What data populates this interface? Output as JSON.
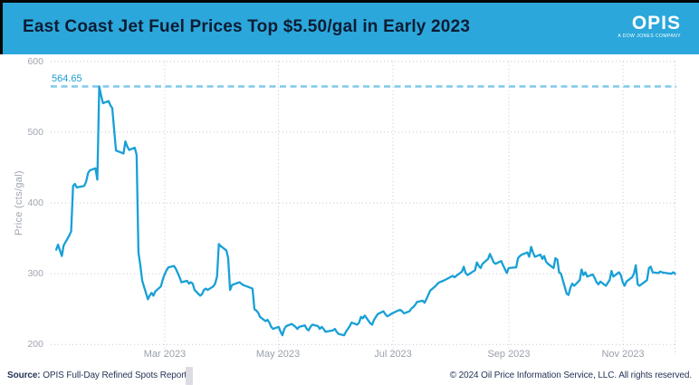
{
  "header": {
    "title": "East Coast Jet Fuel Prices Top $5.50/gal in Early 2023",
    "logo_text": "OPIS",
    "logo_tagline": "A DOW JONES COMPANY"
  },
  "footer": {
    "source_label": "Source:",
    "source_text": " OPIS Full-Day Refined Spots Report",
    "copyright": "© 2024 Oil Price Information Service, LLC. All rights reserved."
  },
  "colors": {
    "header_bg": "#2ba7db",
    "line": "#18a0d6",
    "annotation_line": "#85cbe9",
    "annotation_text": "#1b9ed6",
    "gridline": "#c8c5d0",
    "axis_text": "#9aa0ab"
  },
  "chart_data": {
    "type": "line",
    "title": "East Coast Jet Fuel Prices Top $5.50/gal in Early 2023",
    "xlabel": "",
    "ylabel": "Price (cts/gal)",
    "ylim": [
      200,
      600
    ],
    "x_range": [
      "2023-01-01",
      "2023-12-01"
    ],
    "grid": true,
    "y_tick_labels": [
      "600",
      "500",
      "400",
      "300",
      "200"
    ],
    "x_tick_labels": [
      "Mar 2023",
      "May 2023",
      "Jul 2023",
      "Sep 2023",
      "Nov 2023"
    ],
    "annotation": {
      "label": "564.65",
      "value": 564.65
    },
    "series": [
      {
        "name": "East Coast jet fuel spot price (cts/gal)",
        "points": [
          [
            "2023-01-02",
            334
          ],
          [
            "2023-01-03",
            341
          ],
          [
            "2023-01-04",
            333
          ],
          [
            "2023-01-05",
            325
          ],
          [
            "2023-01-06",
            340
          ],
          [
            "2023-01-09",
            354
          ],
          [
            "2023-01-10",
            360
          ],
          [
            "2023-01-11",
            424
          ],
          [
            "2023-01-12",
            427
          ],
          [
            "2023-01-13",
            422
          ],
          [
            "2023-01-17",
            424
          ],
          [
            "2023-01-18",
            430
          ],
          [
            "2023-01-19",
            442
          ],
          [
            "2023-01-20",
            446
          ],
          [
            "2023-01-23",
            449
          ],
          [
            "2023-01-24",
            433
          ],
          [
            "2023-01-25",
            564.65
          ],
          [
            "2023-01-26",
            552
          ],
          [
            "2023-01-27",
            541
          ],
          [
            "2023-01-30",
            544
          ],
          [
            "2023-01-31",
            538
          ],
          [
            "2023-02-01",
            534
          ],
          [
            "2023-02-02",
            503
          ],
          [
            "2023-02-03",
            474
          ],
          [
            "2023-02-06",
            471
          ],
          [
            "2023-02-07",
            470
          ],
          [
            "2023-02-08",
            487
          ],
          [
            "2023-02-09",
            480
          ],
          [
            "2023-02-10",
            475
          ],
          [
            "2023-02-13",
            478
          ],
          [
            "2023-02-14",
            468
          ],
          [
            "2023-02-15",
            330
          ],
          [
            "2023-02-16",
            312
          ],
          [
            "2023-02-17",
            290
          ],
          [
            "2023-02-20",
            264
          ],
          [
            "2023-02-21",
            269
          ],
          [
            "2023-02-22",
            273
          ],
          [
            "2023-02-23",
            269
          ],
          [
            "2023-02-24",
            275
          ],
          [
            "2023-02-27",
            282
          ],
          [
            "2023-02-28",
            292
          ],
          [
            "2023-03-01",
            299
          ],
          [
            "2023-03-02",
            305
          ],
          [
            "2023-03-03",
            309
          ],
          [
            "2023-03-06",
            311
          ],
          [
            "2023-03-07",
            307
          ],
          [
            "2023-03-08",
            301
          ],
          [
            "2023-03-09",
            295
          ],
          [
            "2023-03-10",
            288
          ],
          [
            "2023-03-13",
            290
          ],
          [
            "2023-03-14",
            286
          ],
          [
            "2023-03-15",
            288
          ],
          [
            "2023-03-16",
            286
          ],
          [
            "2023-03-17",
            277
          ],
          [
            "2023-03-20",
            269
          ],
          [
            "2023-03-21",
            271
          ],
          [
            "2023-03-22",
            277
          ],
          [
            "2023-03-23",
            279
          ],
          [
            "2023-03-24",
            277
          ],
          [
            "2023-03-27",
            282
          ],
          [
            "2023-03-28",
            286
          ],
          [
            "2023-03-29",
            296
          ],
          [
            "2023-03-30",
            342
          ],
          [
            "2023-03-31",
            339
          ],
          [
            "2023-04-03",
            333
          ],
          [
            "2023-04-04",
            322
          ],
          [
            "2023-04-05",
            277
          ],
          [
            "2023-04-06",
            284
          ],
          [
            "2023-04-10",
            288
          ],
          [
            "2023-04-11",
            286
          ],
          [
            "2023-04-12",
            284
          ],
          [
            "2023-04-14",
            282
          ],
          [
            "2023-04-17",
            279
          ],
          [
            "2023-04-18",
            250
          ],
          [
            "2023-04-19",
            248
          ],
          [
            "2023-04-20",
            245
          ],
          [
            "2023-04-21",
            239
          ],
          [
            "2023-04-24",
            233
          ],
          [
            "2023-04-25",
            235
          ],
          [
            "2023-04-26",
            231
          ],
          [
            "2023-04-27",
            225
          ],
          [
            "2023-04-28",
            222
          ],
          [
            "2023-05-01",
            225
          ],
          [
            "2023-05-02",
            218
          ],
          [
            "2023-05-03",
            213
          ],
          [
            "2023-05-04",
            222
          ],
          [
            "2023-05-05",
            226
          ],
          [
            "2023-05-08",
            229
          ],
          [
            "2023-05-09",
            227
          ],
          [
            "2023-05-10",
            225
          ],
          [
            "2023-05-11",
            222
          ],
          [
            "2023-05-12",
            225
          ],
          [
            "2023-05-15",
            227
          ],
          [
            "2023-05-16",
            222
          ],
          [
            "2023-05-17",
            220
          ],
          [
            "2023-05-18",
            225
          ],
          [
            "2023-05-19",
            228
          ],
          [
            "2023-05-22",
            226
          ],
          [
            "2023-05-23",
            222
          ],
          [
            "2023-05-24",
            225
          ],
          [
            "2023-05-25",
            222
          ],
          [
            "2023-05-26",
            218
          ],
          [
            "2023-05-30",
            220
          ],
          [
            "2023-05-31",
            222
          ],
          [
            "2023-06-01",
            218
          ],
          [
            "2023-06-02",
            215
          ],
          [
            "2023-06-05",
            213
          ],
          [
            "2023-06-06",
            218
          ],
          [
            "2023-06-07",
            222
          ],
          [
            "2023-06-08",
            226
          ],
          [
            "2023-06-09",
            231
          ],
          [
            "2023-06-12",
            228
          ],
          [
            "2023-06-13",
            231
          ],
          [
            "2023-06-14",
            239
          ],
          [
            "2023-06-15",
            237
          ],
          [
            "2023-06-16",
            241
          ],
          [
            "2023-06-19",
            230
          ],
          [
            "2023-06-20",
            228
          ],
          [
            "2023-06-21",
            235
          ],
          [
            "2023-06-22",
            239
          ],
          [
            "2023-06-23",
            243
          ],
          [
            "2023-06-26",
            247
          ],
          [
            "2023-06-27",
            243
          ],
          [
            "2023-06-28",
            240
          ],
          [
            "2023-06-29",
            241
          ],
          [
            "2023-06-30",
            243
          ],
          [
            "2023-07-03",
            247
          ],
          [
            "2023-07-05",
            249
          ],
          [
            "2023-07-06",
            247
          ],
          [
            "2023-07-07",
            244
          ],
          [
            "2023-07-10",
            247
          ],
          [
            "2023-07-11",
            251
          ],
          [
            "2023-07-12",
            253
          ],
          [
            "2023-07-13",
            256
          ],
          [
            "2023-07-14",
            260
          ],
          [
            "2023-07-17",
            262
          ],
          [
            "2023-07-18",
            259
          ],
          [
            "2023-07-19",
            264
          ],
          [
            "2023-07-20",
            270
          ],
          [
            "2023-07-21",
            276
          ],
          [
            "2023-07-24",
            283
          ],
          [
            "2023-07-25",
            286
          ],
          [
            "2023-07-26",
            288
          ],
          [
            "2023-07-28",
            290
          ],
          [
            "2023-07-31",
            294
          ],
          [
            "2023-08-02",
            297
          ],
          [
            "2023-08-03",
            295
          ],
          [
            "2023-08-07",
            303
          ],
          [
            "2023-08-08",
            310
          ],
          [
            "2023-08-09",
            301
          ],
          [
            "2023-08-10",
            298
          ],
          [
            "2023-08-14",
            305
          ],
          [
            "2023-08-15",
            316
          ],
          [
            "2023-08-16",
            311
          ],
          [
            "2023-08-17",
            308
          ],
          [
            "2023-08-18",
            314
          ],
          [
            "2023-08-21",
            321
          ],
          [
            "2023-08-22",
            328
          ],
          [
            "2023-08-23",
            322
          ],
          [
            "2023-08-24",
            316
          ],
          [
            "2023-08-25",
            314
          ],
          [
            "2023-08-28",
            318
          ],
          [
            "2023-08-29",
            312
          ],
          [
            "2023-08-31",
            301
          ],
          [
            "2023-09-01",
            308
          ],
          [
            "2023-09-05",
            309
          ],
          [
            "2023-09-06",
            322
          ],
          [
            "2023-09-07",
            325
          ],
          [
            "2023-09-08",
            327
          ],
          [
            "2023-09-11",
            330
          ],
          [
            "2023-09-12",
            324
          ],
          [
            "2023-09-13",
            338
          ],
          [
            "2023-09-14",
            330
          ],
          [
            "2023-09-15",
            324
          ],
          [
            "2023-09-18",
            327
          ],
          [
            "2023-09-19",
            321
          ],
          [
            "2023-09-20",
            325
          ],
          [
            "2023-09-21",
            317
          ],
          [
            "2023-09-22",
            314
          ],
          [
            "2023-09-25",
            308
          ],
          [
            "2023-09-26",
            322
          ],
          [
            "2023-09-27",
            320
          ],
          [
            "2023-09-28",
            302
          ],
          [
            "2023-09-29",
            300
          ],
          [
            "2023-10-02",
            272
          ],
          [
            "2023-10-03",
            270
          ],
          [
            "2023-10-04",
            280
          ],
          [
            "2023-10-05",
            286
          ],
          [
            "2023-10-06",
            283
          ],
          [
            "2023-10-09",
            291
          ],
          [
            "2023-10-10",
            306
          ],
          [
            "2023-10-11",
            298
          ],
          [
            "2023-10-12",
            302
          ],
          [
            "2023-10-13",
            296
          ],
          [
            "2023-10-16",
            299
          ],
          [
            "2023-10-17",
            294
          ],
          [
            "2023-10-18",
            288
          ],
          [
            "2023-10-19",
            285
          ],
          [
            "2023-10-20",
            289
          ],
          [
            "2023-10-23",
            283
          ],
          [
            "2023-10-24",
            287
          ],
          [
            "2023-10-25",
            291
          ],
          [
            "2023-10-26",
            304
          ],
          [
            "2023-10-27",
            296
          ],
          [
            "2023-10-30",
            302
          ],
          [
            "2023-10-31",
            298
          ],
          [
            "2023-11-01",
            288
          ],
          [
            "2023-11-02",
            283
          ],
          [
            "2023-11-03",
            289
          ],
          [
            "2023-11-06",
            295
          ],
          [
            "2023-11-07",
            300
          ],
          [
            "2023-11-08",
            312
          ],
          [
            "2023-11-09",
            285
          ],
          [
            "2023-11-10",
            283
          ],
          [
            "2023-11-13",
            289
          ],
          [
            "2023-11-14",
            291
          ],
          [
            "2023-11-15",
            308
          ],
          [
            "2023-11-16",
            310
          ],
          [
            "2023-11-17",
            302
          ],
          [
            "2023-11-20",
            301
          ],
          [
            "2023-11-21",
            303
          ],
          [
            "2023-11-22",
            302
          ],
          [
            "2023-11-24",
            301
          ],
          [
            "2023-11-27",
            300
          ],
          [
            "2023-11-28",
            302
          ],
          [
            "2023-11-29",
            300
          ]
        ]
      }
    ]
  }
}
